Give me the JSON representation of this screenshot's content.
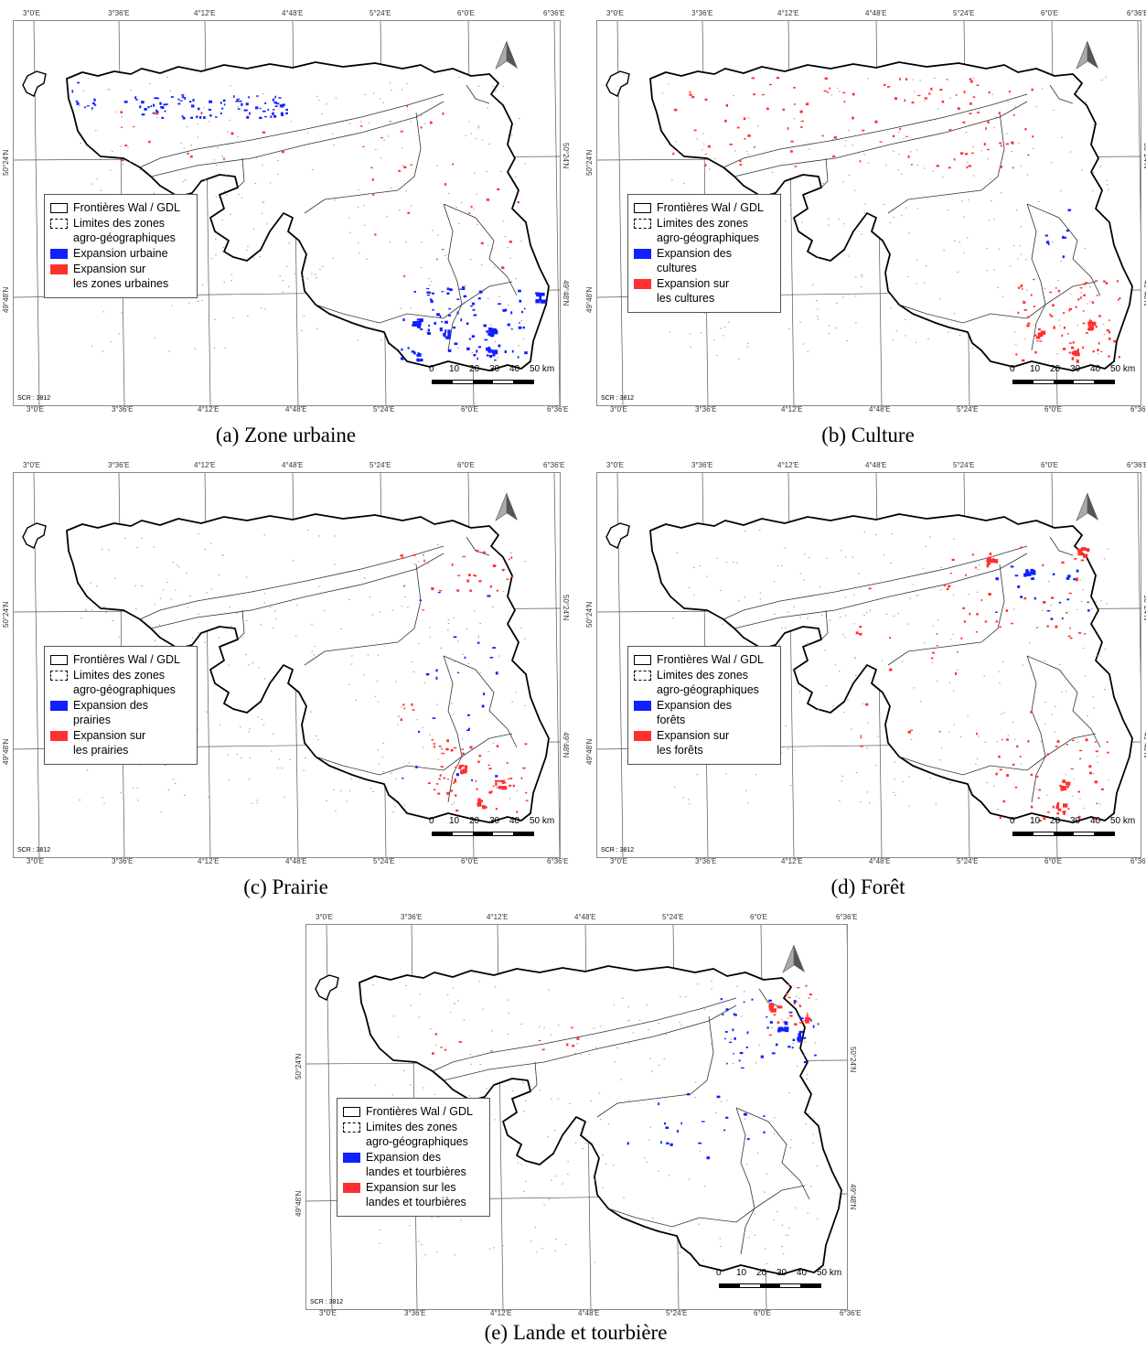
{
  "colors": {
    "blue": "#1020ff",
    "red": "#ff3030"
  },
  "coords": {
    "lon": [
      "3°0'E",
      "3°36'E",
      "4°12'E",
      "4°48'E",
      "5°24'E",
      "6°0'E",
      "6°36'E"
    ],
    "lat_top": "50°24'N",
    "lat_bottom": "49°48'N"
  },
  "scale": {
    "ticks": [
      "0",
      "10",
      "20",
      "30",
      "40",
      "50 km"
    ]
  },
  "crs": "SCR : 3812",
  "north_icon": "north-arrow-icon",
  "panels": [
    {
      "caption": "(a) Zone urbaine",
      "legend": {
        "border": "Frontières Wal / GDL",
        "zones_l1": "Limites des zones",
        "zones_l2": "agro-géographiques",
        "blue_l1": "Expansion urbaine",
        "blue_l2": "",
        "red_l1": "Expansion sur",
        "red_l2": "les zones urbaines"
      }
    },
    {
      "caption": "(b) Culture",
      "legend": {
        "border": "Frontières Wal / GDL",
        "zones_l1": "Limites des zones",
        "zones_l2": "agro-géographiques",
        "blue_l1": "Expansion des",
        "blue_l2": "cultures",
        "red_l1": "Expansion sur",
        "red_l2": "les cultures"
      }
    },
    {
      "caption": "(c) Prairie",
      "legend": {
        "border": "Frontières Wal / GDL",
        "zones_l1": "Limites des zones",
        "zones_l2": "agro-géographiques",
        "blue_l1": "Expansion des",
        "blue_l2": "prairies",
        "red_l1": "Expansion sur",
        "red_l2": "les prairies"
      }
    },
    {
      "caption": "(d) Forêt",
      "legend": {
        "border": "Frontières Wal / GDL",
        "zones_l1": "Limites des zones",
        "zones_l2": "agro-géographiques",
        "blue_l1": "Expansion des",
        "blue_l2": "forêts",
        "red_l1": "Expansion sur",
        "red_l2": "les forêts"
      }
    },
    {
      "caption": "(e) Lande et tourbière",
      "legend": {
        "border": "Frontières Wal / GDL",
        "zones_l1": "Limites des zones",
        "zones_l2": "agro-géographiques",
        "blue_l1": "Expansion des",
        "blue_l2": "landes et tourbières",
        "red_l1": "Expansion sur les",
        "red_l2": "landes et tourbières"
      }
    }
  ]
}
